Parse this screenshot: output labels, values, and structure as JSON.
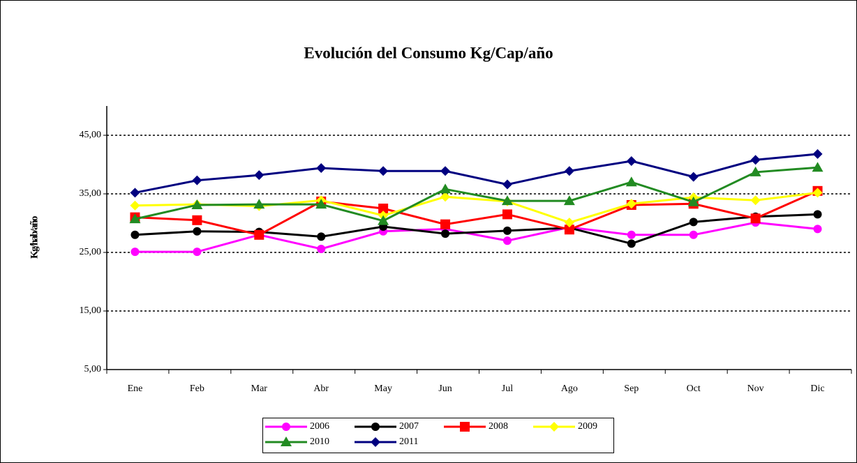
{
  "chart_data": {
    "type": "line",
    "title": "Evolución del Consumo  Kg/Cap/año",
    "y_label": "Kg/hab/año",
    "categories": [
      "Ene",
      "Feb",
      "Mar",
      "Abr",
      "May",
      "Jun",
      "Jul",
      "Ago",
      "Sep",
      "Oct",
      "Nov",
      "Dic"
    ],
    "series": [
      {
        "name": "2006",
        "color": "#ff00ff",
        "marker": "circle",
        "values": [
          25.1,
          25.1,
          28.0,
          25.6,
          28.6,
          29.0,
          27.0,
          29.3,
          28.0,
          28.0,
          30.1,
          29.0
        ]
      },
      {
        "name": "2007",
        "color": "#000000",
        "marker": "circle",
        "values": [
          28.0,
          28.6,
          28.5,
          27.7,
          29.4,
          28.2,
          28.7,
          29.2,
          26.5,
          30.2,
          31.1,
          31.5
        ]
      },
      {
        "name": "2008",
        "color": "#ff0000",
        "marker": "square",
        "values": [
          31.0,
          30.5,
          28.0,
          33.7,
          32.5,
          29.8,
          31.5,
          28.9,
          33.1,
          33.3,
          30.8,
          35.5
        ]
      },
      {
        "name": "2009",
        "color": "#ffff00",
        "marker": "diamond",
        "values": [
          33.0,
          33.2,
          32.9,
          33.9,
          31.3,
          34.5,
          33.7,
          30.1,
          33.3,
          34.4,
          33.9,
          35.2
        ]
      },
      {
        "name": "2010",
        "color": "#228b22",
        "marker": "triangle",
        "values": [
          30.7,
          33.1,
          33.2,
          33.2,
          30.4,
          35.8,
          33.8,
          33.8,
          37.0,
          33.6,
          38.7,
          39.5
        ]
      },
      {
        "name": "2011",
        "color": "#000080",
        "marker": "diamond",
        "values": [
          35.2,
          37.3,
          38.2,
          39.4,
          38.9,
          38.9,
          36.6,
          38.9,
          40.6,
          37.9,
          40.8,
          41.8
        ]
      }
    ],
    "ylim": [
      5,
      50
    ],
    "yticks": [
      {
        "value": 5,
        "label": "5,00"
      },
      {
        "value": 15,
        "label": "15,00"
      },
      {
        "value": 25,
        "label": "25,00"
      },
      {
        "value": 35,
        "label": "35,00"
      },
      {
        "value": 45,
        "label": "45,00"
      }
    ],
    "grid": true
  }
}
